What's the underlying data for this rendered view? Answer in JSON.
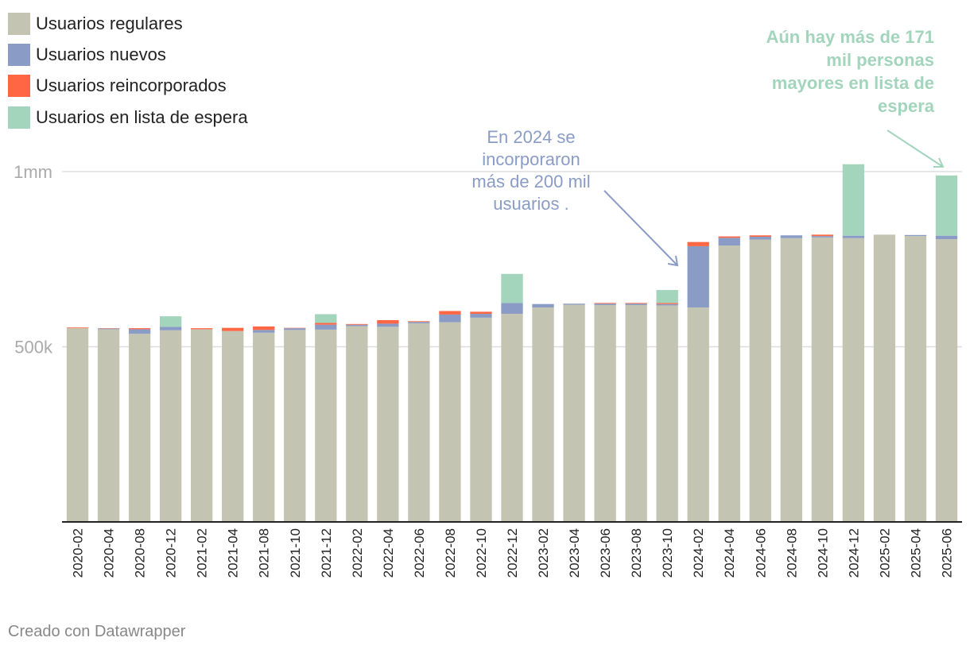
{
  "chart_data": {
    "type": "bar",
    "stacked": true,
    "categories": [
      "2020-02",
      "2020-04",
      "2020-08",
      "2020-12",
      "2021-02",
      "2021-04",
      "2021-08",
      "2021-10",
      "2021-12",
      "2022-02",
      "2022-04",
      "2022-06",
      "2022-08",
      "2022-10",
      "2022-12",
      "2023-02",
      "2023-04",
      "2023-06",
      "2023-08",
      "2023-10",
      "2024-02",
      "2024-04",
      "2024-06",
      "2024-08",
      "2024-10",
      "2024-12",
      "2025-02",
      "2025-04",
      "2025-06"
    ],
    "series": [
      {
        "name": "Usuarios regulares",
        "color": "#c4c4b2",
        "values": [
          553000,
          550000,
          537000,
          547000,
          550000,
          545000,
          540000,
          548000,
          549000,
          559000,
          557000,
          567000,
          570000,
          583000,
          594000,
          612000,
          620000,
          619000,
          619000,
          618000,
          612000,
          789000,
          806000,
          810000,
          812000,
          810000,
          820000,
          816000,
          807000
        ]
      },
      {
        "name": "Usuarios nuevos",
        "color": "#8a9cc6",
        "values": [
          0,
          2000,
          13000,
          10000,
          0,
          0,
          8000,
          5000,
          14000,
          4000,
          9000,
          4000,
          22000,
          11000,
          31000,
          10000,
          3000,
          4000,
          4000,
          4000,
          175000,
          22000,
          8000,
          8000,
          4000,
          7000,
          0,
          3000,
          10000
        ]
      },
      {
        "name": "Usuarios reincorporados",
        "color": "#ff6644",
        "values": [
          2000,
          1000,
          3000,
          0,
          3000,
          9000,
          10000,
          1000,
          5000,
          2000,
          10000,
          2000,
          10000,
          6000,
          0,
          0,
          0,
          2000,
          2000,
          3000,
          12000,
          4000,
          4000,
          0,
          4000,
          0,
          0,
          0,
          0
        ]
      },
      {
        "name": "Usuarios en lista de espera",
        "color": "#a3d4bc",
        "values": [
          0,
          0,
          0,
          30000,
          0,
          0,
          0,
          0,
          25000,
          0,
          0,
          0,
          0,
          0,
          83000,
          0,
          0,
          0,
          0,
          37000,
          0,
          0,
          0,
          0,
          0,
          204000,
          0,
          0,
          172000
        ]
      }
    ],
    "yticks": [
      {
        "value": 500000,
        "label": "500k"
      },
      {
        "value": 1000000,
        "label": "1mm"
      }
    ],
    "ylim": [
      0,
      1000000
    ],
    "grid": true,
    "legend_position": "top-left",
    "annotations": [
      {
        "lines": [
          "En 2024 se",
          "incorporaron",
          "más de 200 mil",
          "usuarios ."
        ],
        "color": "#8a9cc6"
      },
      {
        "lines": [
          "Aún hay más de 171",
          "mil personas",
          "mayores en lista de",
          "espera"
        ],
        "color": "#a3d4bc"
      }
    ],
    "credit": "Creado con Datawrapper"
  }
}
